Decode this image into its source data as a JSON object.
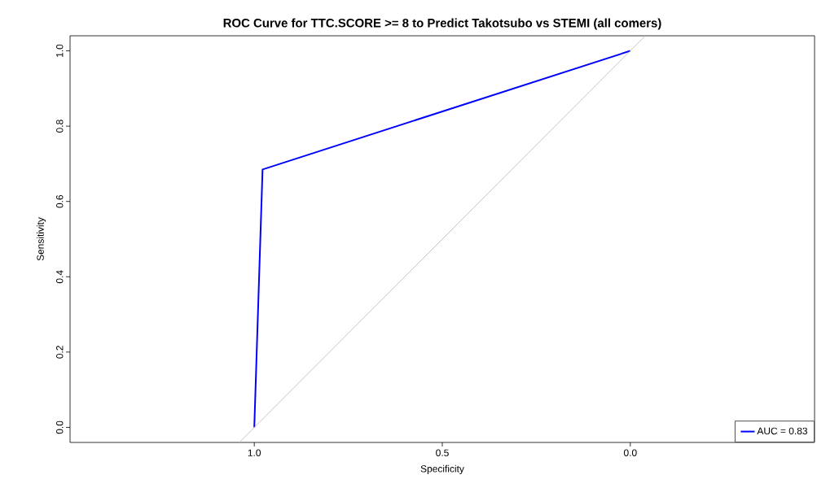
{
  "chart_data": {
    "type": "line",
    "title": "ROC Curve for TTC.SCORE >= 8 to Predict Takotsubo vs STEMI (all comers)",
    "xlabel": "Specificity",
    "ylabel": "Sensitivity",
    "series": [
      {
        "name": "AUC = 0.83",
        "color": "#0000ff",
        "x": [
          1.0,
          0.978,
          0.0
        ],
        "values": [
          0.0,
          0.685,
          1.0
        ]
      },
      {
        "color": "#bebebe",
        "x": [
          1.04,
          -0.04
        ],
        "values": [
          -0.04,
          1.04
        ]
      }
    ],
    "xlim": [
      1.49,
      -0.49
    ],
    "xticks": [
      {
        "value": 1.0,
        "label": "1.0"
      },
      {
        "value": 0.5,
        "label": "0.5"
      },
      {
        "value": 0.0,
        "label": "0.0"
      }
    ],
    "ylim": [
      -0.04,
      1.04
    ],
    "yticks": [
      {
        "value": 0.0,
        "label": "0.0"
      },
      {
        "value": 0.2,
        "label": "0.2"
      },
      {
        "value": 0.4,
        "label": "0.4"
      },
      {
        "value": 0.6,
        "label": "0.6"
      },
      {
        "value": 0.8,
        "label": "0.8"
      },
      {
        "value": 1.0,
        "label": "1.0"
      }
    ],
    "grid": false,
    "legend": "bottom right",
    "marker": "none",
    "line_style": "solid"
  }
}
